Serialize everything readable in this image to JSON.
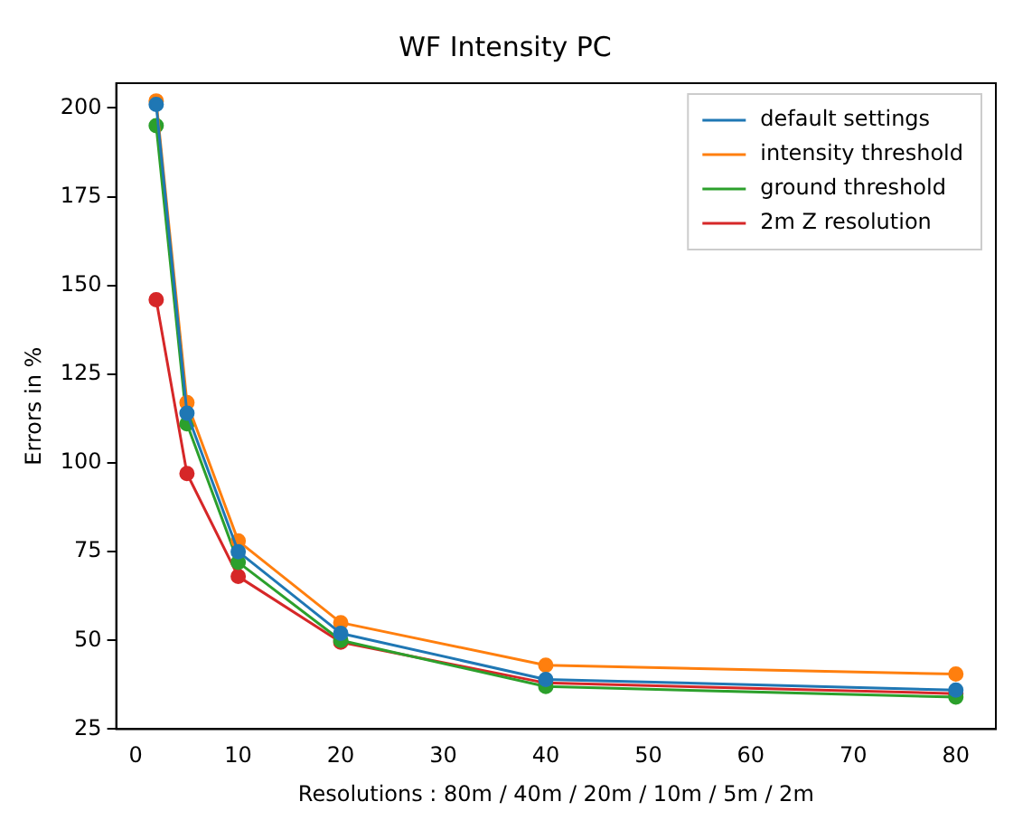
{
  "chart_data": {
    "type": "line",
    "title": "WF Intensity PC",
    "xlabel": "Resolutions : 80m / 40m / 20m / 10m / 5m / 2m",
    "ylabel": "Errors in %",
    "x": [
      2,
      5,
      10,
      20,
      40,
      80
    ],
    "series": [
      {
        "name": "default settings",
        "color": "#1f77b4",
        "values": [
          201,
          114,
          75,
          52,
          39,
          36
        ]
      },
      {
        "name": "intensity threshold",
        "color": "#ff7f0e",
        "values": [
          202,
          117,
          78,
          55,
          43,
          40.5
        ]
      },
      {
        "name": "ground threshold",
        "color": "#2ca02c",
        "values": [
          195,
          111,
          72,
          50,
          37,
          34
        ]
      },
      {
        "name": "2m Z resolution",
        "color": "#d62728",
        "values": [
          146,
          97,
          68,
          49.5,
          38,
          35
        ]
      }
    ],
    "xlim": [
      -1.9,
      83.9
    ],
    "ylim": [
      25,
      207
    ],
    "xticks": [
      0,
      10,
      20,
      30,
      40,
      50,
      60,
      70,
      80
    ],
    "yticks": [
      25,
      50,
      75,
      100,
      125,
      150,
      175,
      200
    ],
    "grid": false,
    "legend": "top right",
    "marker": "circle",
    "line_style": "solid"
  }
}
